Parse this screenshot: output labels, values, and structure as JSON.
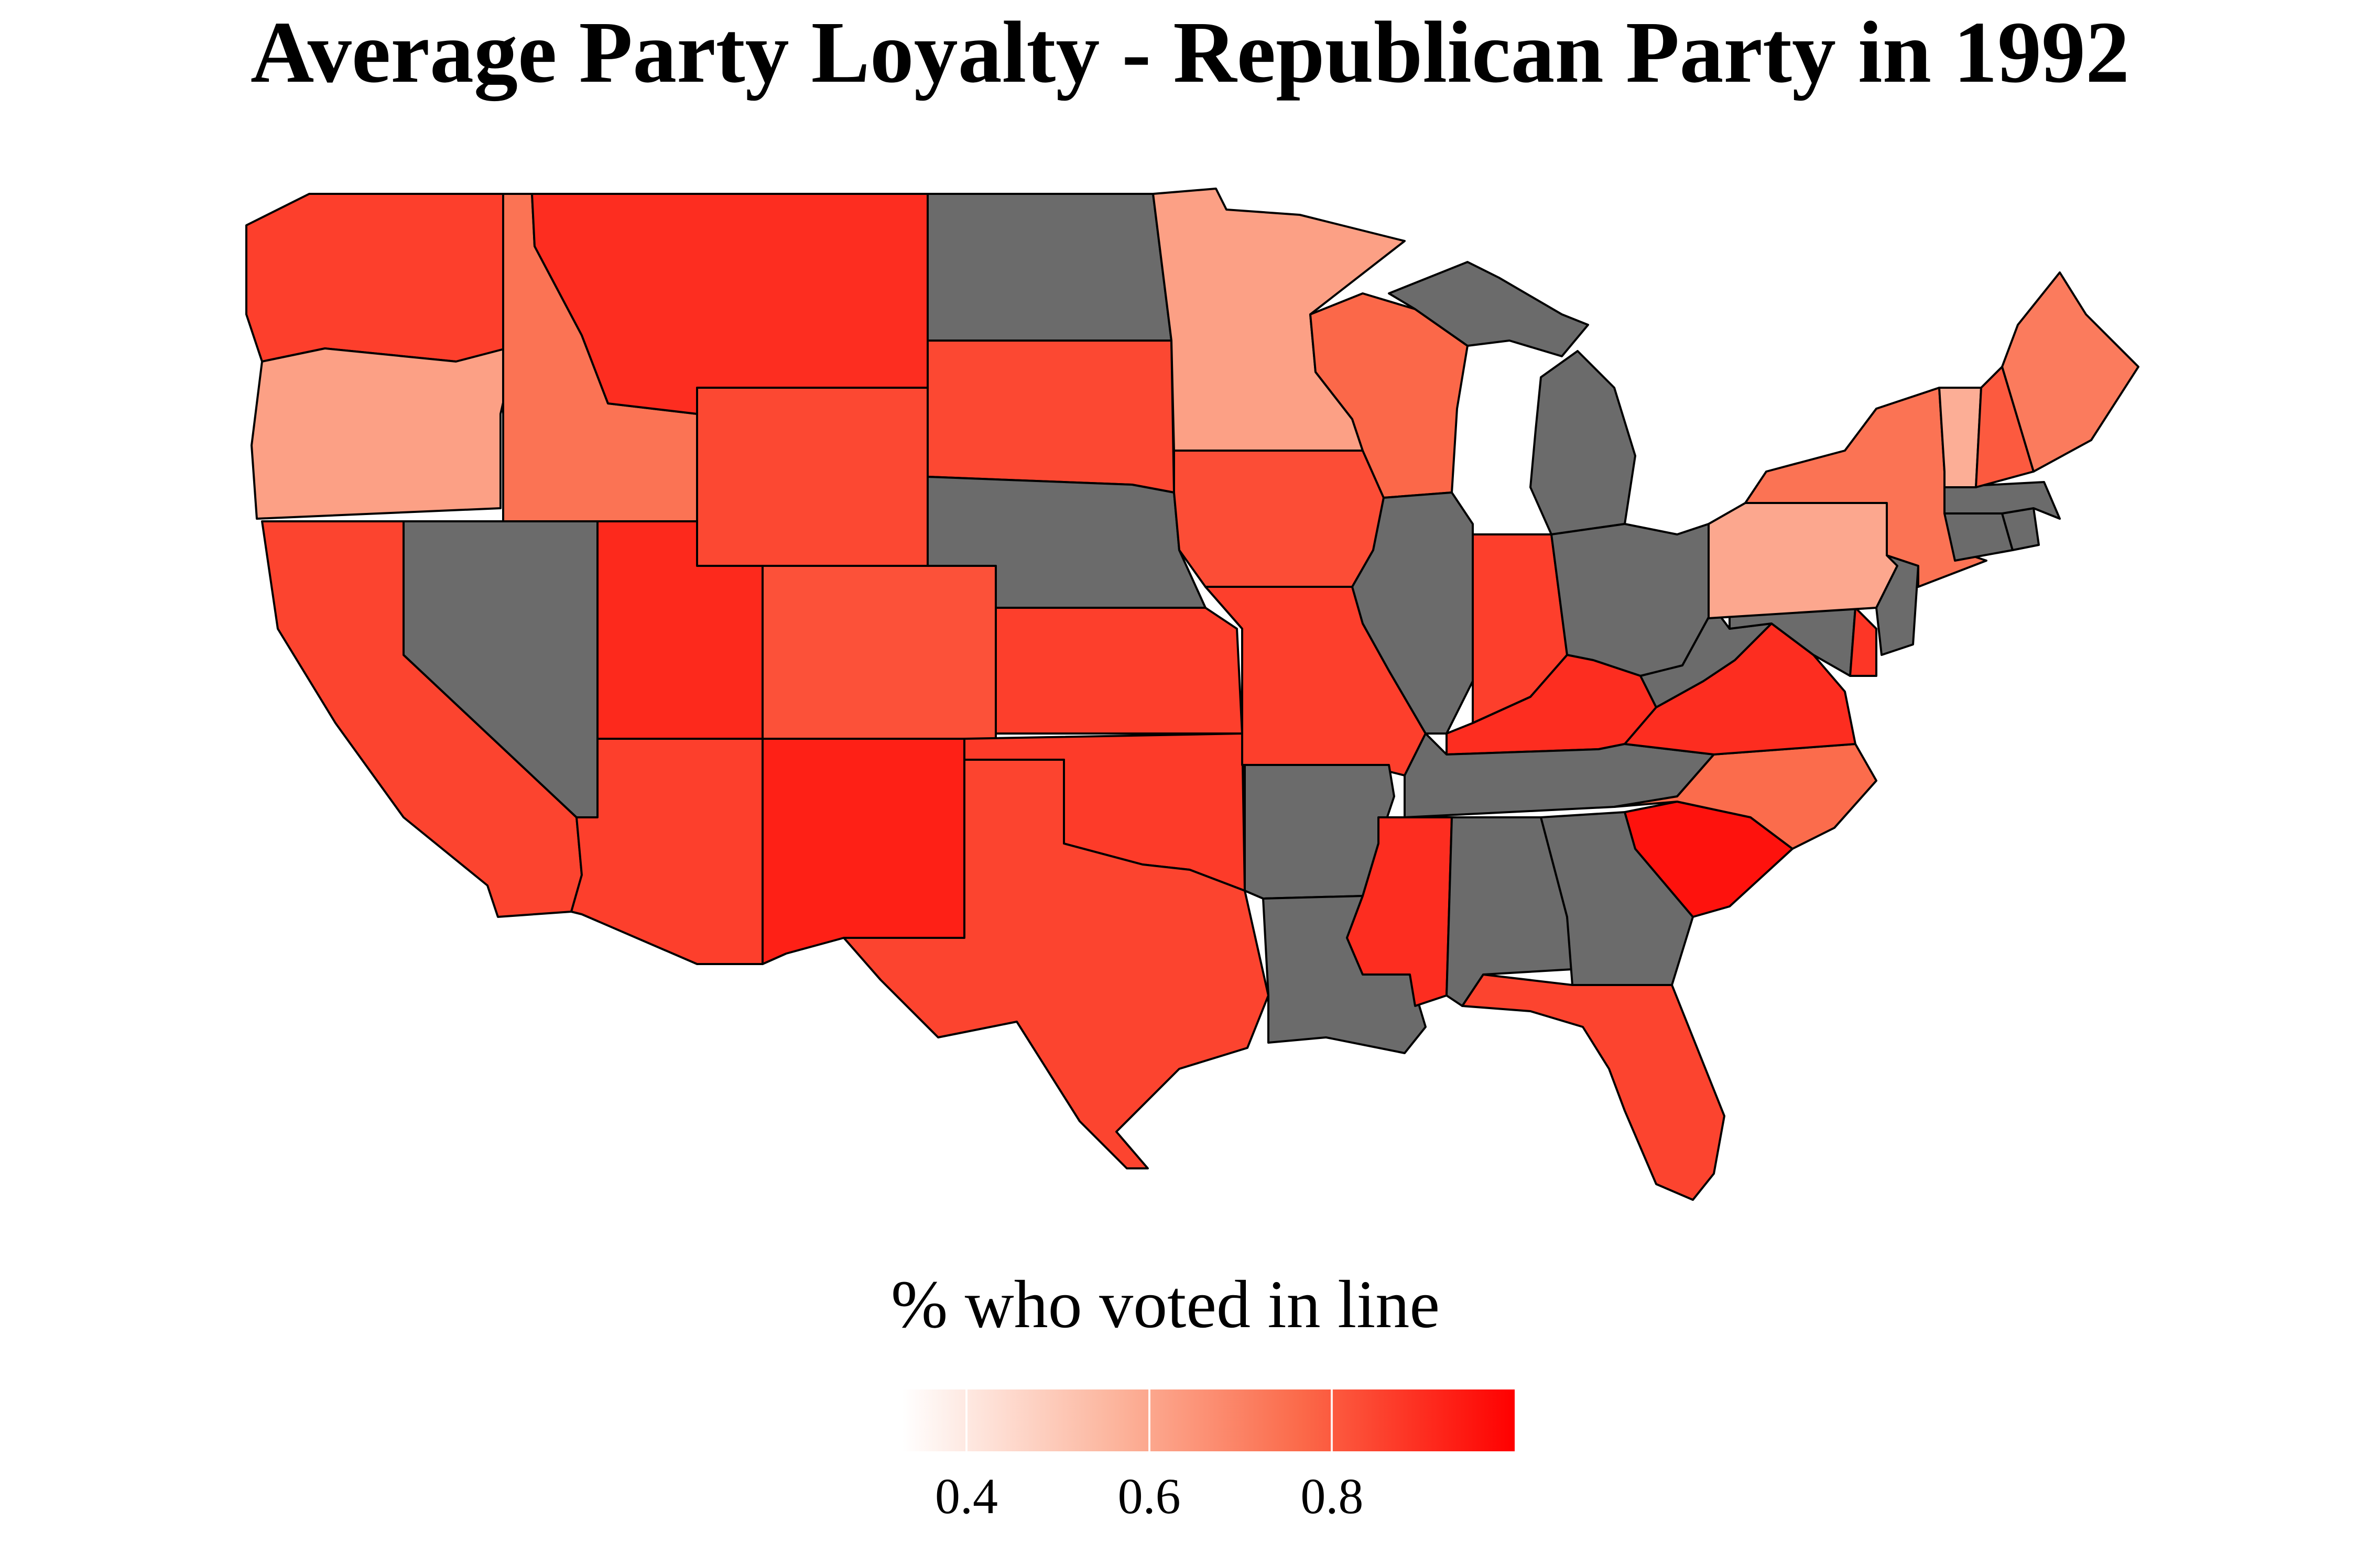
{
  "title": "Average Party Loyalty - Republican Party in 1992",
  "legend": {
    "title": "% who voted in line",
    "ticks": [
      {
        "value": 0.4,
        "label": "0.4"
      },
      {
        "value": 0.6,
        "label": "0.6"
      },
      {
        "value": 0.8,
        "label": "0.8"
      }
    ],
    "range": [
      0.33,
      1.0
    ],
    "low_color": "#ffffff",
    "high_color": "#ff0000"
  },
  "colors": {
    "no_data": "#6b6b6b",
    "border": "#000000"
  },
  "map_data": {
    "type": "choropleth",
    "region": "contiguous United States",
    "states": [
      {
        "id": "WA",
        "value": 0.86
      },
      {
        "id": "OR",
        "value": 0.62
      },
      {
        "id": "CA",
        "value": 0.85
      },
      {
        "id": "ID",
        "value": 0.74
      },
      {
        "id": "NV",
        "value": null
      },
      {
        "id": "MT",
        "value": 0.9
      },
      {
        "id": "WY",
        "value": 0.84
      },
      {
        "id": "UT",
        "value": 0.91
      },
      {
        "id": "AZ",
        "value": 0.86
      },
      {
        "id": "CO",
        "value": 0.82
      },
      {
        "id": "NM",
        "value": 0.93
      },
      {
        "id": "ND",
        "value": null
      },
      {
        "id": "SD",
        "value": 0.84
      },
      {
        "id": "NE",
        "value": null
      },
      {
        "id": "KS",
        "value": 0.86
      },
      {
        "id": "OK",
        "value": 0.87
      },
      {
        "id": "TX",
        "value": 0.85
      },
      {
        "id": "MN",
        "value": 0.62
      },
      {
        "id": "IA",
        "value": 0.83
      },
      {
        "id": "MO",
        "value": 0.86
      },
      {
        "id": "AR",
        "value": null
      },
      {
        "id": "LA",
        "value": null
      },
      {
        "id": "WI",
        "value": 0.77
      },
      {
        "id": "IL",
        "value": null
      },
      {
        "id": "MI",
        "value": null
      },
      {
        "id": "IN",
        "value": 0.86
      },
      {
        "id": "OH",
        "value": null
      },
      {
        "id": "KY",
        "value": 0.9
      },
      {
        "id": "TN",
        "value": null
      },
      {
        "id": "MS",
        "value": 0.9
      },
      {
        "id": "AL",
        "value": null
      },
      {
        "id": "GA",
        "value": null
      },
      {
        "id": "FL",
        "value": 0.85
      },
      {
        "id": "SC",
        "value": 0.96
      },
      {
        "id": "NC",
        "value": 0.76
      },
      {
        "id": "VA",
        "value": 0.9
      },
      {
        "id": "WV",
        "value": null
      },
      {
        "id": "MD",
        "value": null
      },
      {
        "id": "DE",
        "value": 0.88
      },
      {
        "id": "PA",
        "value": 0.6
      },
      {
        "id": "NJ",
        "value": null
      },
      {
        "id": "NY",
        "value": 0.74
      },
      {
        "id": "CT",
        "value": null
      },
      {
        "id": "RI",
        "value": null
      },
      {
        "id": "MA",
        "value": null
      },
      {
        "id": "VT",
        "value": 0.58
      },
      {
        "id": "NH",
        "value": 0.8
      },
      {
        "id": "ME",
        "value": 0.72
      }
    ]
  }
}
